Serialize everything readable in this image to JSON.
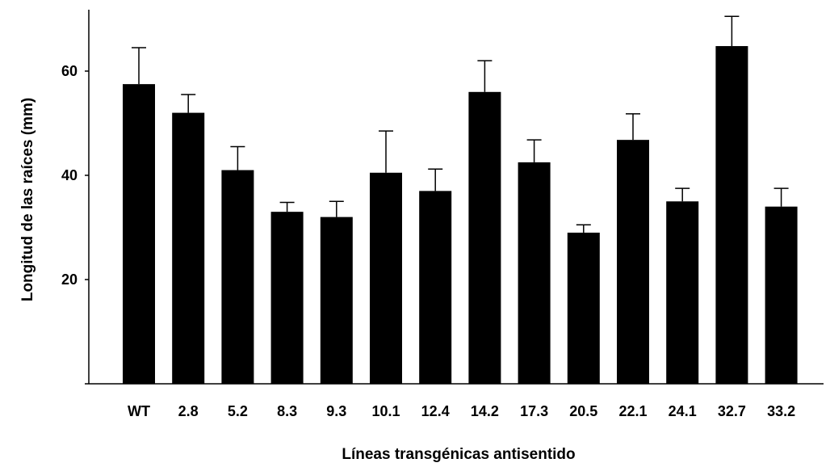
{
  "chart_data": {
    "type": "bar",
    "title": "",
    "xlabel": "Líneas transgénicas antisentido",
    "ylabel": "Longitud de las raíces (mm)",
    "ylim": [
      0,
      72
    ],
    "yticks": [
      20,
      40,
      60
    ],
    "grid": false,
    "legend": "none",
    "categories": [
      "WT",
      "2.8",
      "5.2",
      "8.3",
      "9.3",
      "10.1",
      "12.4",
      "14.2",
      "17.3",
      "20.5",
      "22.1",
      "24.1",
      "32.7",
      "33.2"
    ],
    "values": [
      57.5,
      52,
      41,
      33,
      32,
      40.5,
      37,
      56,
      42.5,
      29,
      46.8,
      35,
      64.8,
      34
    ],
    "error_upper": [
      64.5,
      55.5,
      45.5,
      34.8,
      35,
      48.5,
      41.2,
      62,
      46.8,
      30.5,
      51.8,
      37.5,
      70.5,
      37.5
    ],
    "bar_color": "#000000"
  }
}
